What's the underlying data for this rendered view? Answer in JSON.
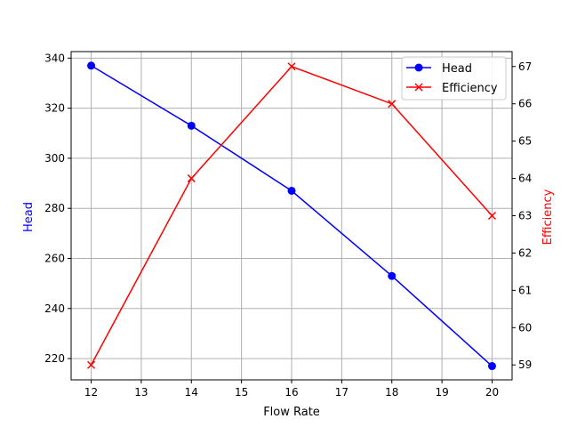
{
  "chart_data": {
    "type": "line",
    "title": "",
    "xlabel": "Flow Rate",
    "ylabel": "Head",
    "y2label": "Efficiency",
    "x": [
      12,
      14,
      16,
      18,
      20
    ],
    "xlim": [
      11.6,
      20.4
    ],
    "ylim": [
      211.5,
      342.6
    ],
    "y2lim": [
      58.6,
      67.4
    ],
    "xticks": [
      12,
      13,
      14,
      15,
      16,
      17,
      18,
      19,
      20
    ],
    "yticks": [
      220,
      240,
      260,
      280,
      300,
      320,
      340
    ],
    "y2ticks": [
      59,
      60,
      61,
      62,
      63,
      64,
      65,
      66,
      67
    ],
    "grid": true,
    "legend_position": "upper right",
    "series": [
      {
        "name": "Head",
        "axis": "left",
        "color": "#0000ff",
        "marker": "circle",
        "values": [
          337,
          313,
          287,
          253,
          217
        ]
      },
      {
        "name": "Efficiency",
        "axis": "right",
        "color": "#ff0000",
        "marker": "x",
        "values": [
          59,
          64,
          67,
          66,
          63
        ]
      }
    ]
  },
  "labels": {
    "xlabel": "Flow Rate",
    "ylabel": "Head",
    "y2label": "Efficiency",
    "legend": [
      "Head",
      "Efficiency"
    ]
  }
}
